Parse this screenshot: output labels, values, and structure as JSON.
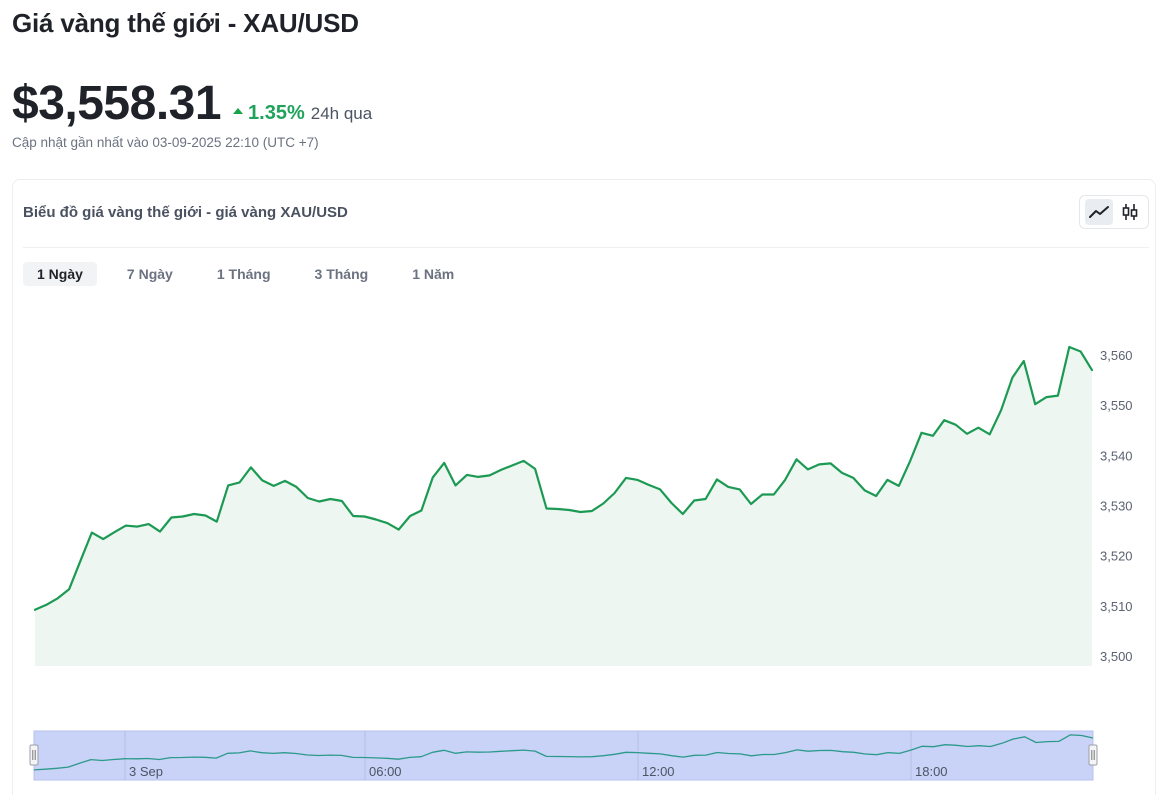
{
  "page": {
    "title": "Giá vàng thế giới - XAU/USD",
    "price": "$3,558.31",
    "change_pct": "1.35%",
    "change_period": "24h qua",
    "updated": "Cập nhật gần nhất vào 03-09-2025 22:10 (UTC +7)"
  },
  "card": {
    "title": "Biểu đồ giá vàng thế giới - giá vàng XAU/USD",
    "chart_types": [
      {
        "icon": "line-chart-icon",
        "active": true
      },
      {
        "icon": "candlestick-icon",
        "active": false
      }
    ],
    "tabs": [
      {
        "label": "1 Ngày",
        "active": true
      },
      {
        "label": "7 Ngày",
        "active": false
      },
      {
        "label": "1 Tháng",
        "active": false
      },
      {
        "label": "3 Tháng",
        "active": false
      },
      {
        "label": "1 Năm",
        "active": false
      }
    ]
  },
  "colors": {
    "line": "#1c9a54",
    "area": "#edf6f0",
    "positive": "#1fa35a",
    "navigator_fill": "#c9d2f7",
    "navigator_line": "#2c9a8a"
  },
  "chart_data": {
    "type": "area",
    "title": "",
    "xlabel": "",
    "ylabel": "",
    "ylim": [
      3500,
      3560
    ],
    "y_ticks": [
      3500,
      3510,
      3520,
      3530,
      3540,
      3550,
      3560
    ],
    "y_tick_labels": [
      "3,500",
      "3,510",
      "3,520",
      "3,530",
      "3,540",
      "3,550",
      "3,560"
    ],
    "grid": false,
    "legend": "none",
    "series": [
      {
        "values": [
          3509.2,
          3510.2,
          3511.5,
          3513.3,
          3519.0,
          3524.6,
          3523.3,
          3524.7,
          3526.0,
          3525.8,
          3526.3,
          3524.8,
          3527.6,
          3527.8,
          3528.3,
          3528.0,
          3526.8,
          3534.0,
          3534.6,
          3537.6,
          3535.0,
          3533.9,
          3534.9,
          3533.7,
          3531.5,
          3530.8,
          3531.3,
          3530.9,
          3527.9,
          3527.8,
          3527.2,
          3526.5,
          3525.2,
          3527.9,
          3529.0,
          3535.6,
          3538.5,
          3534.0,
          3536.1,
          3535.7,
          3536.0,
          3537.1,
          3538.0,
          3538.9,
          3537.3,
          3529.4,
          3529.3,
          3529.1,
          3528.7,
          3528.9,
          3530.4,
          3532.5,
          3535.5,
          3535.1,
          3534.1,
          3533.2,
          3530.5,
          3528.3,
          3531.0,
          3531.3,
          3535.2,
          3533.7,
          3533.2,
          3530.3,
          3532.2,
          3532.2,
          3535.1,
          3539.2,
          3537.2,
          3538.2,
          3538.4,
          3536.5,
          3535.5,
          3533.0,
          3531.9,
          3535.1,
          3533.9,
          3538.9,
          3544.5,
          3543.9,
          3547.0,
          3546.1,
          3544.3,
          3545.5,
          3544.2,
          3549.0,
          3555.5,
          3558.8,
          3550.2,
          3551.6,
          3551.9,
          3561.6,
          3560.7,
          3557.0
        ]
      }
    ],
    "navigator_labels": [
      "3 Sep",
      "06:00",
      "12:00",
      "18:00"
    ]
  }
}
